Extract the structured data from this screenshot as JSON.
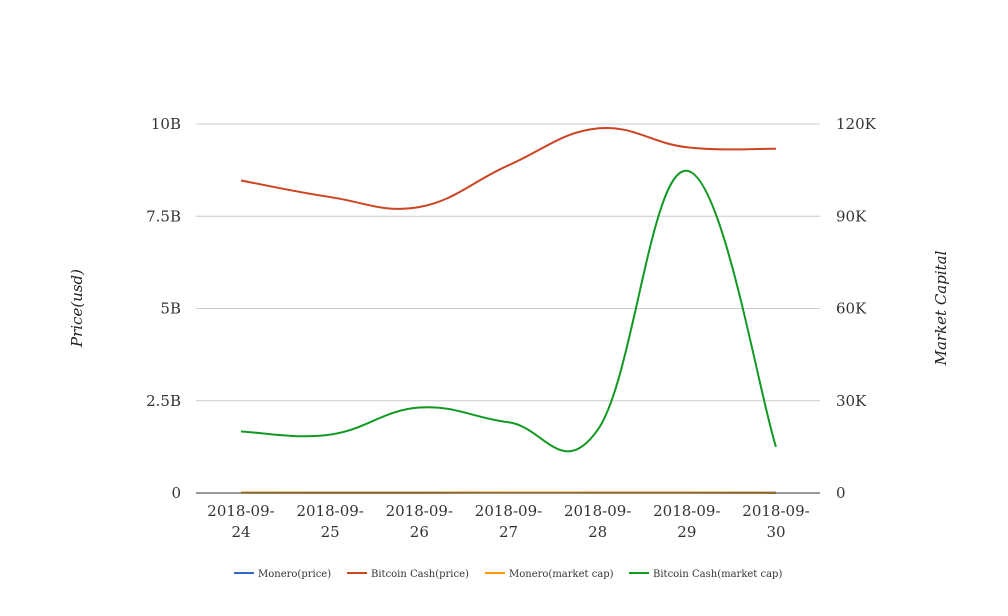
{
  "chart_data": {
    "type": "line",
    "title": "",
    "categories": [
      "2018-09-24",
      "2018-09-25",
      "2018-09-26",
      "2018-09-27",
      "2018-09-28",
      "2018-09-29",
      "2018-09-30"
    ],
    "x_tick_labels": [
      [
        "2018-09-",
        "24"
      ],
      [
        "2018-09-",
        "25"
      ],
      [
        "2018-09-",
        "26"
      ],
      [
        "2018-09-",
        "27"
      ],
      [
        "2018-09-",
        "28"
      ],
      [
        "2018-09-",
        "29"
      ],
      [
        "2018-09-",
        "30"
      ]
    ],
    "y_left": {
      "label": "Price(usd)",
      "lim": [
        0,
        10000000000
      ],
      "ticks": [
        0,
        2500000000,
        5000000000,
        7500000000,
        10000000000
      ],
      "tick_labels": [
        "0",
        "2.5B",
        "5B",
        "7.5B",
        "10B"
      ]
    },
    "y_right": {
      "label": "Market Capital",
      "lim": [
        0,
        120000
      ],
      "ticks": [
        0,
        30000,
        60000,
        90000,
        120000
      ],
      "tick_labels": [
        "0",
        "30K",
        "60K",
        "90K",
        "120K"
      ]
    },
    "grid": true,
    "legend_position": "bottom",
    "series": [
      {
        "name": "Monero(price)",
        "color": "#3366cc",
        "axis": "left",
        "values": [
          12000000,
          10000000,
          11000000,
          15000000,
          14000000,
          13000000,
          9000000
        ]
      },
      {
        "name": "Bitcoin Cash(price)",
        "color": "#cc4422",
        "axis": "left",
        "values": [
          8470000000,
          8020000000,
          7750000000,
          8880000000,
          9880000000,
          9370000000,
          9330000000
        ]
      },
      {
        "name": "Monero(market cap)",
        "color": "#ff9900",
        "axis": "right",
        "values": [
          110,
          80,
          90,
          150,
          140,
          120,
          60
        ]
      },
      {
        "name": "Bitcoin Cash(market cap)",
        "color": "#119922",
        "axis": "right",
        "values": [
          20000,
          19000,
          27800,
          23000,
          20500,
          104800,
          15000
        ]
      }
    ]
  }
}
